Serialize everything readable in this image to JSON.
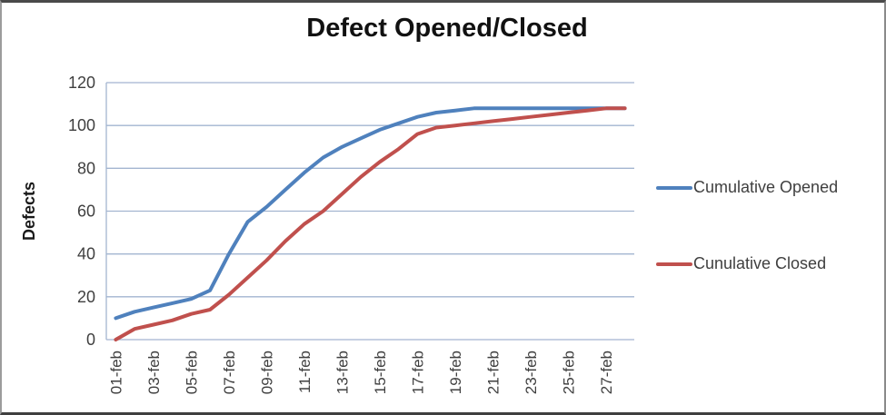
{
  "chart_data": {
    "type": "line",
    "title": "Defect Opened/Closed",
    "ylabel": "Defects",
    "ylim": [
      0,
      120
    ],
    "yticks": [
      0,
      20,
      40,
      60,
      80,
      100,
      120
    ],
    "x_tick_labels": [
      "01-feb",
      "03-feb",
      "05-feb",
      "07-feb",
      "09-feb",
      "11-feb",
      "13-feb",
      "15-feb",
      "17-feb",
      "19-feb",
      "21-feb",
      "23-feb",
      "25-feb",
      "27-feb"
    ],
    "x_point_count": 28,
    "grid": "horizontal",
    "legend_position": "right",
    "series": [
      {
        "name": "Cumulative Opened",
        "color": "#4F81BD",
        "values": [
          10,
          13,
          15,
          17,
          19,
          23,
          40,
          55,
          62,
          70,
          78,
          85,
          90,
          94,
          98,
          101,
          104,
          106,
          107,
          108,
          108,
          108,
          108,
          108,
          108,
          108,
          108,
          108
        ]
      },
      {
        "name": "Cunulative Closed",
        "color": "#C0504D",
        "values": [
          0,
          5,
          7,
          9,
          12,
          14,
          21,
          29,
          37,
          46,
          54,
          60,
          68,
          76,
          83,
          89,
          96,
          99,
          100,
          101,
          102,
          103,
          104,
          105,
          106,
          107,
          108,
          108
        ]
      }
    ],
    "colors": {
      "gridline": "#A3B5D0",
      "axis_line": "#A3B5D0",
      "tick_text": "#3f3f3f",
      "title_text": "#111111"
    }
  },
  "legend": {
    "items": [
      {
        "label": "Cumulative Opened",
        "color": "#4F81BD"
      },
      {
        "label": "Cunulative Closed",
        "color": "#C0504D"
      }
    ]
  }
}
